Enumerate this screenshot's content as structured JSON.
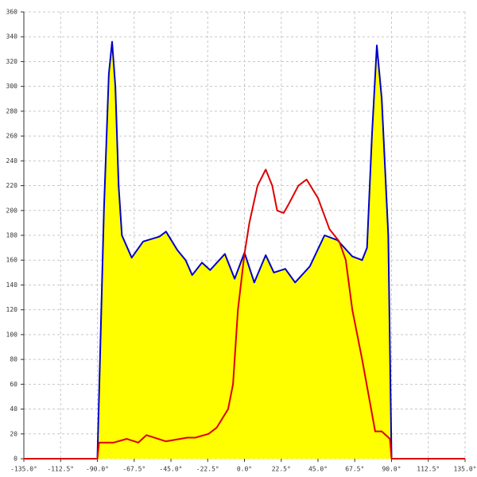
{
  "chart_data": {
    "type": "area_line",
    "series": [
      {
        "name": null,
        "color": "#0000cc",
        "fill": "#ffff00",
        "x": [
          -90,
          -86,
          -83,
          -81,
          -79,
          -77,
          -75,
          -69,
          -62,
          -52,
          -48,
          -41,
          -36,
          -32,
          -26,
          -21,
          -12,
          -6,
          0,
          6,
          13,
          18,
          25,
          31,
          40,
          49,
          57,
          66,
          72,
          75,
          78,
          81,
          84,
          88,
          90
        ],
        "values": [
          0,
          200,
          310,
          336,
          300,
          220,
          180,
          162,
          175,
          179,
          183,
          168,
          160,
          148,
          158,
          152,
          165,
          145,
          166,
          142,
          164,
          150,
          153,
          142,
          155,
          180,
          176,
          163,
          160,
          170,
          260,
          333,
          290,
          180,
          0
        ]
      },
      {
        "name": null,
        "color": "#dd0000",
        "fill": null,
        "x": [
          -135,
          -90,
          -89,
          -80,
          -72,
          -65,
          -60,
          -48,
          -35,
          -30,
          -22,
          -17,
          -10,
          -7,
          -4,
          0,
          3,
          8,
          13,
          17,
          20,
          24,
          27,
          33,
          38,
          45,
          52,
          58,
          62,
          66,
          72,
          80,
          84,
          89,
          90,
          135
        ],
        "values": [
          0,
          0,
          13,
          13,
          16,
          13,
          19,
          14,
          17,
          17,
          20,
          25,
          40,
          60,
          120,
          165,
          190,
          220,
          233,
          220,
          200,
          198,
          205,
          220,
          225,
          210,
          185,
          175,
          160,
          120,
          80,
          22,
          22,
          16,
          0,
          0
        ]
      }
    ],
    "xlim": [
      -135,
      135
    ],
    "xticks": [
      {
        "value": -135,
        "label": "-135.0°"
      },
      {
        "value": -112.5,
        "label": "-112.5°"
      },
      {
        "value": -90,
        "label": "-90.0°"
      },
      {
        "value": -67.5,
        "label": "-67.5°"
      },
      {
        "value": -45,
        "label": "-45.0°"
      },
      {
        "value": -22.5,
        "label": "-22.5°"
      },
      {
        "value": 0,
        "label": "0.0°"
      },
      {
        "value": 22.5,
        "label": "22.5°"
      },
      {
        "value": 45,
        "label": "45.0°"
      },
      {
        "value": 67.5,
        "label": "67.5°"
      },
      {
        "value": 90,
        "label": "90.0°"
      },
      {
        "value": 112.5,
        "label": "112.5°"
      },
      {
        "value": 135,
        "label": "135.0°"
      }
    ],
    "ylim": [
      0,
      360
    ],
    "yticks": [
      0,
      20,
      40,
      60,
      80,
      100,
      120,
      140,
      160,
      180,
      200,
      220,
      240,
      260,
      280,
      300,
      320,
      340,
      360
    ],
    "grid": true
  }
}
